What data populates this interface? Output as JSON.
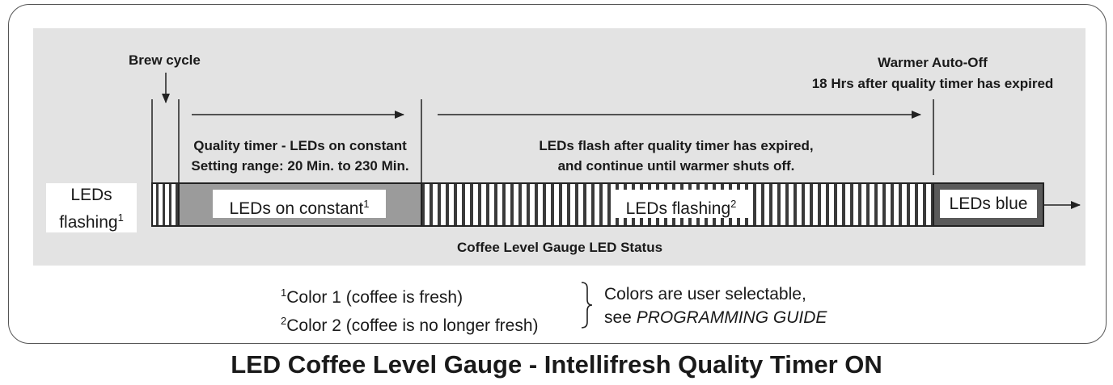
{
  "labels": {
    "brew_cycle": "Brew cycle",
    "warmer_line1": "Warmer Auto-Off",
    "warmer_line2": "18 Hrs after quality timer has expired",
    "quality_line1": "Quality timer - LEDs on constant",
    "quality_line2": "Setting range: 20 Min. to 230 Min.",
    "flash_line1": "LEDs flash after quality timer has expired,",
    "flash_line2": "and continue until warmer shuts off.",
    "gauge_caption": "Coffee Level Gauge LED Status"
  },
  "segments": {
    "leds_flashing_left_1": "LEDs",
    "leds_flashing_left_2": "flashing",
    "leds_flashing_left_sup": "1",
    "on_constant": "LEDs on constant",
    "on_constant_sup": "1",
    "flashing": "LEDs flashing",
    "flashing_sup": "2",
    "blue": "LEDs blue"
  },
  "notes": {
    "color1_sup": "1",
    "color1": "Color 1 (coffee is fresh)",
    "color2_sup": "2",
    "color2": "Color 2 (coffee is no longer fresh)",
    "selectable_1": "Colors are user selectable,",
    "selectable_2_prefix": "see ",
    "selectable_2_guide": "PROGRAMMING GUIDE"
  },
  "title": "LED Coffee Level Gauge - Intellifresh Quality Timer ON",
  "colors": {
    "panel": "#e3e3e3",
    "on_constant_fill": "#9b9b9b",
    "blue_fill": "#5a5a5a",
    "stripe": "#3a3a3a"
  }
}
